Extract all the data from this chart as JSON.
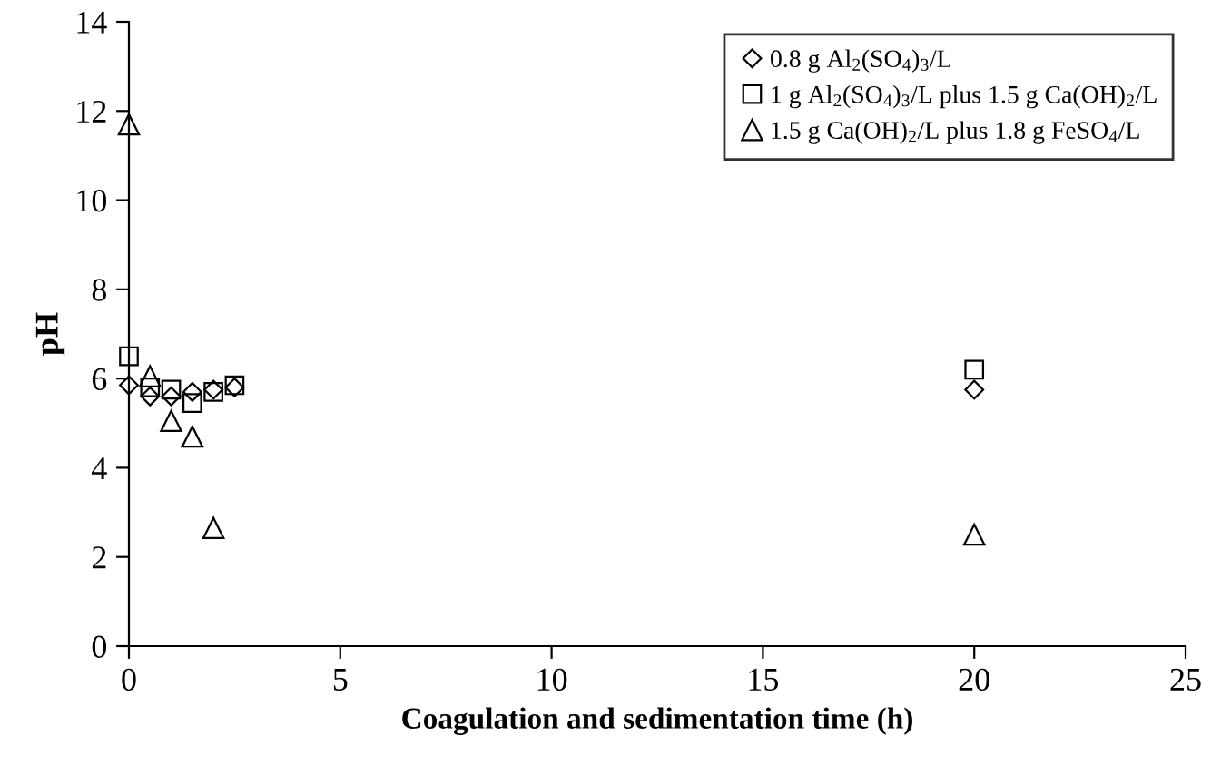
{
  "chart_data": {
    "type": "scatter",
    "xlabel": "Coagulation and sedimentation time (h)",
    "ylabel": "pH",
    "xlim": [
      0,
      25
    ],
    "xticks": [
      0,
      5,
      10,
      15,
      20,
      25
    ],
    "ylim": [
      0,
      14
    ],
    "yticks": [
      0,
      2,
      4,
      6,
      8,
      10,
      12,
      14
    ],
    "grid": false,
    "legend": "top right",
    "series": [
      {
        "name": "0.8 g Al$_{2}$(SO$_{4}$)$_{3}$/L",
        "color": "#000000",
        "marker": "diamond",
        "x": [
          0,
          0.5,
          1,
          1.5,
          2,
          2.5,
          20
        ],
        "values": [
          5.85,
          5.6,
          5.6,
          5.7,
          5.75,
          5.8,
          5.75
        ]
      },
      {
        "name": "1 g Al$_{2}$(SO$_{4}$)$_{3}$/L plus 1.5 g Ca(OH)$_{2}$/L",
        "color": "#000000",
        "marker": "square",
        "x": [
          0,
          0.5,
          1,
          1.5,
          2,
          2.5,
          20
        ],
        "values": [
          6.5,
          5.8,
          5.75,
          5.45,
          5.7,
          5.85,
          6.2
        ]
      },
      {
        "name": "1.5 g Ca(OH)$_{2}$/L plus 1.8 g FeSO$_{4}$/L",
        "color": "#000000",
        "marker": "triangle",
        "x": [
          0,
          0.5,
          1,
          1.5,
          2,
          20
        ],
        "values": [
          11.7,
          6.05,
          5.05,
          4.7,
          2.65,
          2.5
        ]
      }
    ]
  }
}
